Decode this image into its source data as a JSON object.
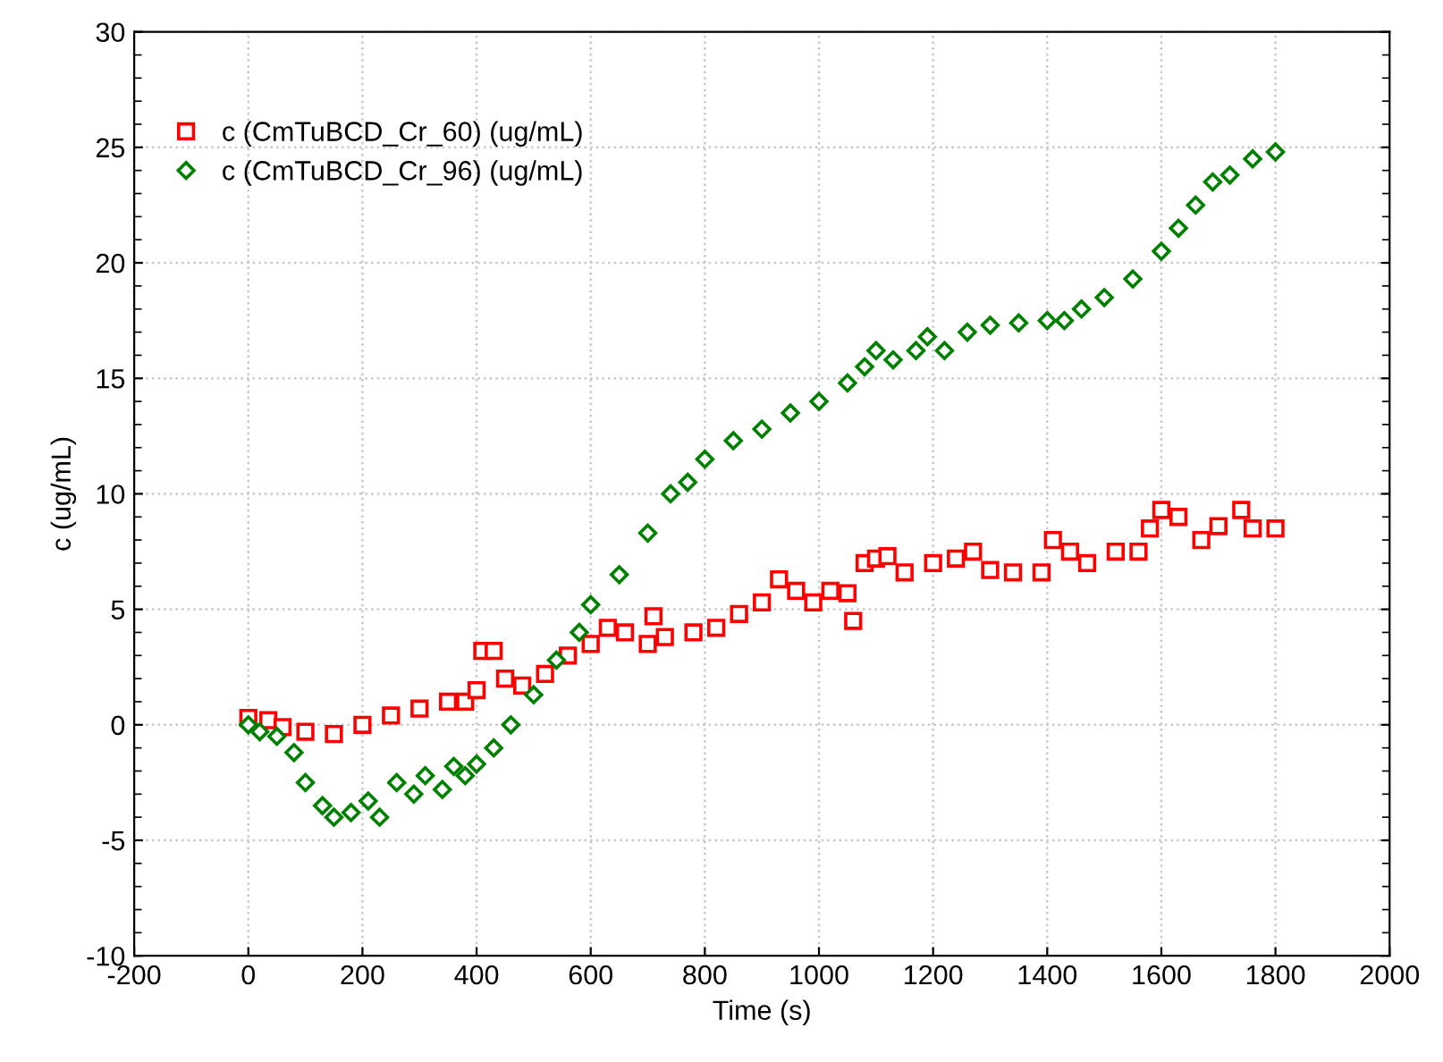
{
  "chart_data": {
    "type": "scatter",
    "xlabel": "Time (s)",
    "ylabel": "c (ug/mL)",
    "xlim": [
      -200,
      2000
    ],
    "xticks": [
      -200,
      0,
      200,
      400,
      600,
      800,
      1000,
      1200,
      1400,
      1600,
      1800,
      2000
    ],
    "ylim": [
      -10,
      30
    ],
    "yticks": [
      -10,
      -5,
      0,
      5,
      10,
      15,
      20,
      25,
      30
    ],
    "grid": true,
    "legend": "top left",
    "series": [
      {
        "name": "c (CmTuBCD_Cr_60) (ug/mL)",
        "color": "#ff0000",
        "marker": "square",
        "x": [
          0,
          35,
          60,
          100,
          150,
          200,
          250,
          300,
          350,
          380,
          400,
          410,
          430,
          450,
          480,
          520,
          560,
          600,
          630,
          660,
          700,
          710,
          730,
          780,
          820,
          860,
          900,
          930,
          960,
          990,
          1020,
          1050,
          1060,
          1080,
          1100,
          1120,
          1150,
          1200,
          1240,
          1270,
          1300,
          1340,
          1390,
          1410,
          1440,
          1470,
          1520,
          1560,
          1580,
          1600,
          1630,
          1670,
          1700,
          1740,
          1760,
          1800
        ],
        "values": [
          0.3,
          0.2,
          -0.1,
          -0.3,
          -0.4,
          0,
          0.4,
          0.7,
          1.0,
          1.0,
          1.5,
          3.2,
          3.2,
          2.0,
          1.7,
          2.2,
          3.0,
          3.5,
          4.2,
          4.0,
          3.5,
          4.7,
          3.8,
          4.0,
          4.2,
          4.8,
          5.3,
          6.3,
          5.8,
          5.3,
          5.8,
          5.7,
          4.5,
          7.0,
          7.2,
          7.3,
          6.6,
          7.0,
          7.2,
          7.5,
          6.7,
          6.6,
          6.6,
          8.0,
          7.5,
          7.0,
          7.5,
          7.5,
          8.5,
          9.3,
          9.0,
          8.0,
          8.6,
          9.3,
          8.5,
          8.5
        ]
      },
      {
        "name": "c (CmTuBCD_Cr_96) (ug/mL)",
        "color": "#008000",
        "marker": "diamond",
        "x": [
          0,
          20,
          50,
          80,
          100,
          130,
          150,
          180,
          210,
          230,
          260,
          290,
          310,
          340,
          360,
          380,
          400,
          430,
          460,
          500,
          540,
          580,
          600,
          650,
          700,
          740,
          770,
          800,
          850,
          900,
          950,
          1000,
          1050,
          1080,
          1100,
          1130,
          1170,
          1190,
          1220,
          1260,
          1300,
          1350,
          1400,
          1430,
          1460,
          1500,
          1550,
          1600,
          1630,
          1660,
          1690,
          1720,
          1760,
          1800
        ],
        "values": [
          0,
          -0.3,
          -0.5,
          -1.2,
          -2.5,
          -3.5,
          -4.0,
          -3.8,
          -3.3,
          -4.0,
          -2.5,
          -3.0,
          -2.2,
          -2.8,
          -1.8,
          -2.2,
          -1.7,
          -1.0,
          0,
          1.3,
          2.8,
          4.0,
          5.2,
          6.5,
          8.3,
          10.0,
          10.5,
          11.5,
          12.3,
          12.8,
          13.5,
          14.0,
          14.8,
          15.5,
          16.2,
          15.8,
          16.2,
          16.8,
          16.2,
          17.0,
          17.3,
          17.4,
          17.5,
          17.5,
          18.0,
          18.5,
          19.3,
          20.5,
          21.5,
          22.5,
          23.5,
          23.8,
          24.5,
          24.8
        ]
      }
    ]
  }
}
